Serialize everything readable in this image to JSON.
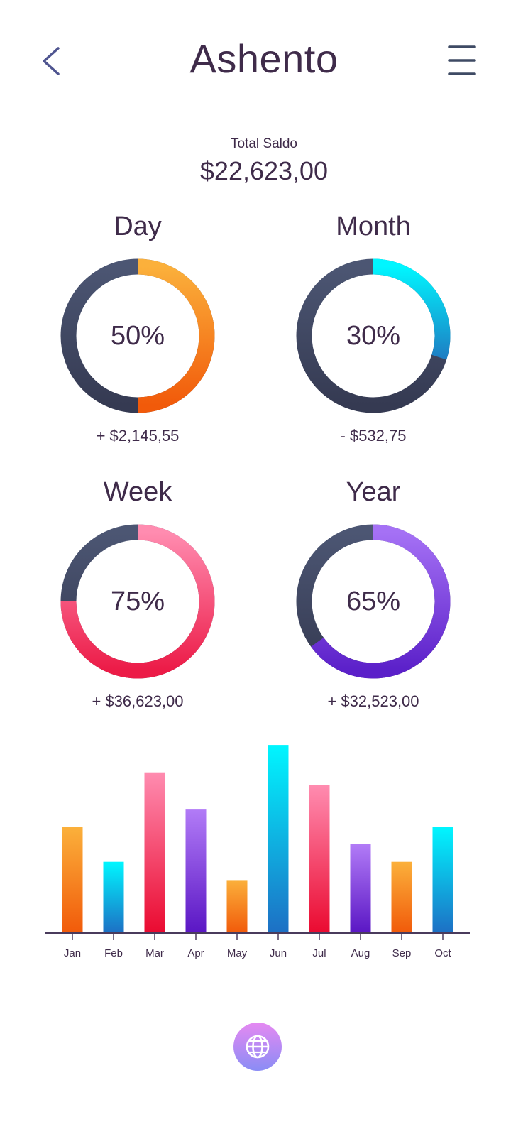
{
  "header": {
    "title": "Ashento",
    "back_icon": "chevron-left-icon",
    "menu_icon": "hamburger-menu-icon"
  },
  "balance": {
    "label": "Total Saldo",
    "value": "$22,623,00"
  },
  "stats": [
    {
      "id": "day",
      "title": "Day",
      "percent_label": "50%",
      "percent": 50,
      "amount": "+ $2,145,55",
      "colors": [
        "#fbb03b",
        "#f15a0a"
      ]
    },
    {
      "id": "month",
      "title": "Month",
      "percent_label": "30%",
      "percent": 30,
      "amount": "- $532,75",
      "colors": [
        "#00f6ff",
        "#1d7fc4"
      ]
    },
    {
      "id": "week",
      "title": "Week",
      "percent_label": "75%",
      "percent": 75,
      "amount": "+ $36,623,00",
      "colors": [
        "#ff8cb0",
        "#ec1b47"
      ]
    },
    {
      "id": "year",
      "title": "Year",
      "percent_label": "65%",
      "percent": 65,
      "amount": "+ $32,523,00",
      "colors": [
        "#a571f5",
        "#5b20c9"
      ]
    }
  ],
  "ring_track_colors": [
    "#4c5673",
    "#353a52"
  ],
  "chart_data": {
    "type": "bar",
    "categories": [
      "Jan",
      "Feb",
      "Mar",
      "Apr",
      "May",
      "Jun",
      "Jul",
      "Aug",
      "Sep",
      "Oct"
    ],
    "values": [
      58,
      39,
      88,
      68,
      29,
      103,
      81,
      49,
      39,
      58
    ],
    "ylim": [
      0,
      105
    ],
    "grid": false,
    "bar_colors": [
      [
        "#fbb03b",
        "#f15a0a"
      ],
      [
        "#00f6ff",
        "#1d6fc4"
      ],
      [
        "#ff8cb0",
        "#ea0a30"
      ],
      [
        "#b27cf7",
        "#5a16c4"
      ],
      [
        "#fbb03b",
        "#f15a0a"
      ],
      [
        "#00f6ff",
        "#1d6fc4"
      ],
      [
        "#ff8cb0",
        "#ea0a30"
      ],
      [
        "#b27cf7",
        "#5a16c4"
      ],
      [
        "#fbb03b",
        "#f15a0a"
      ],
      [
        "#00f6ff",
        "#1d6fc4"
      ]
    ]
  },
  "fab": {
    "icon": "globe-icon",
    "colors": [
      "#e589f2",
      "#8a8cf5"
    ]
  }
}
